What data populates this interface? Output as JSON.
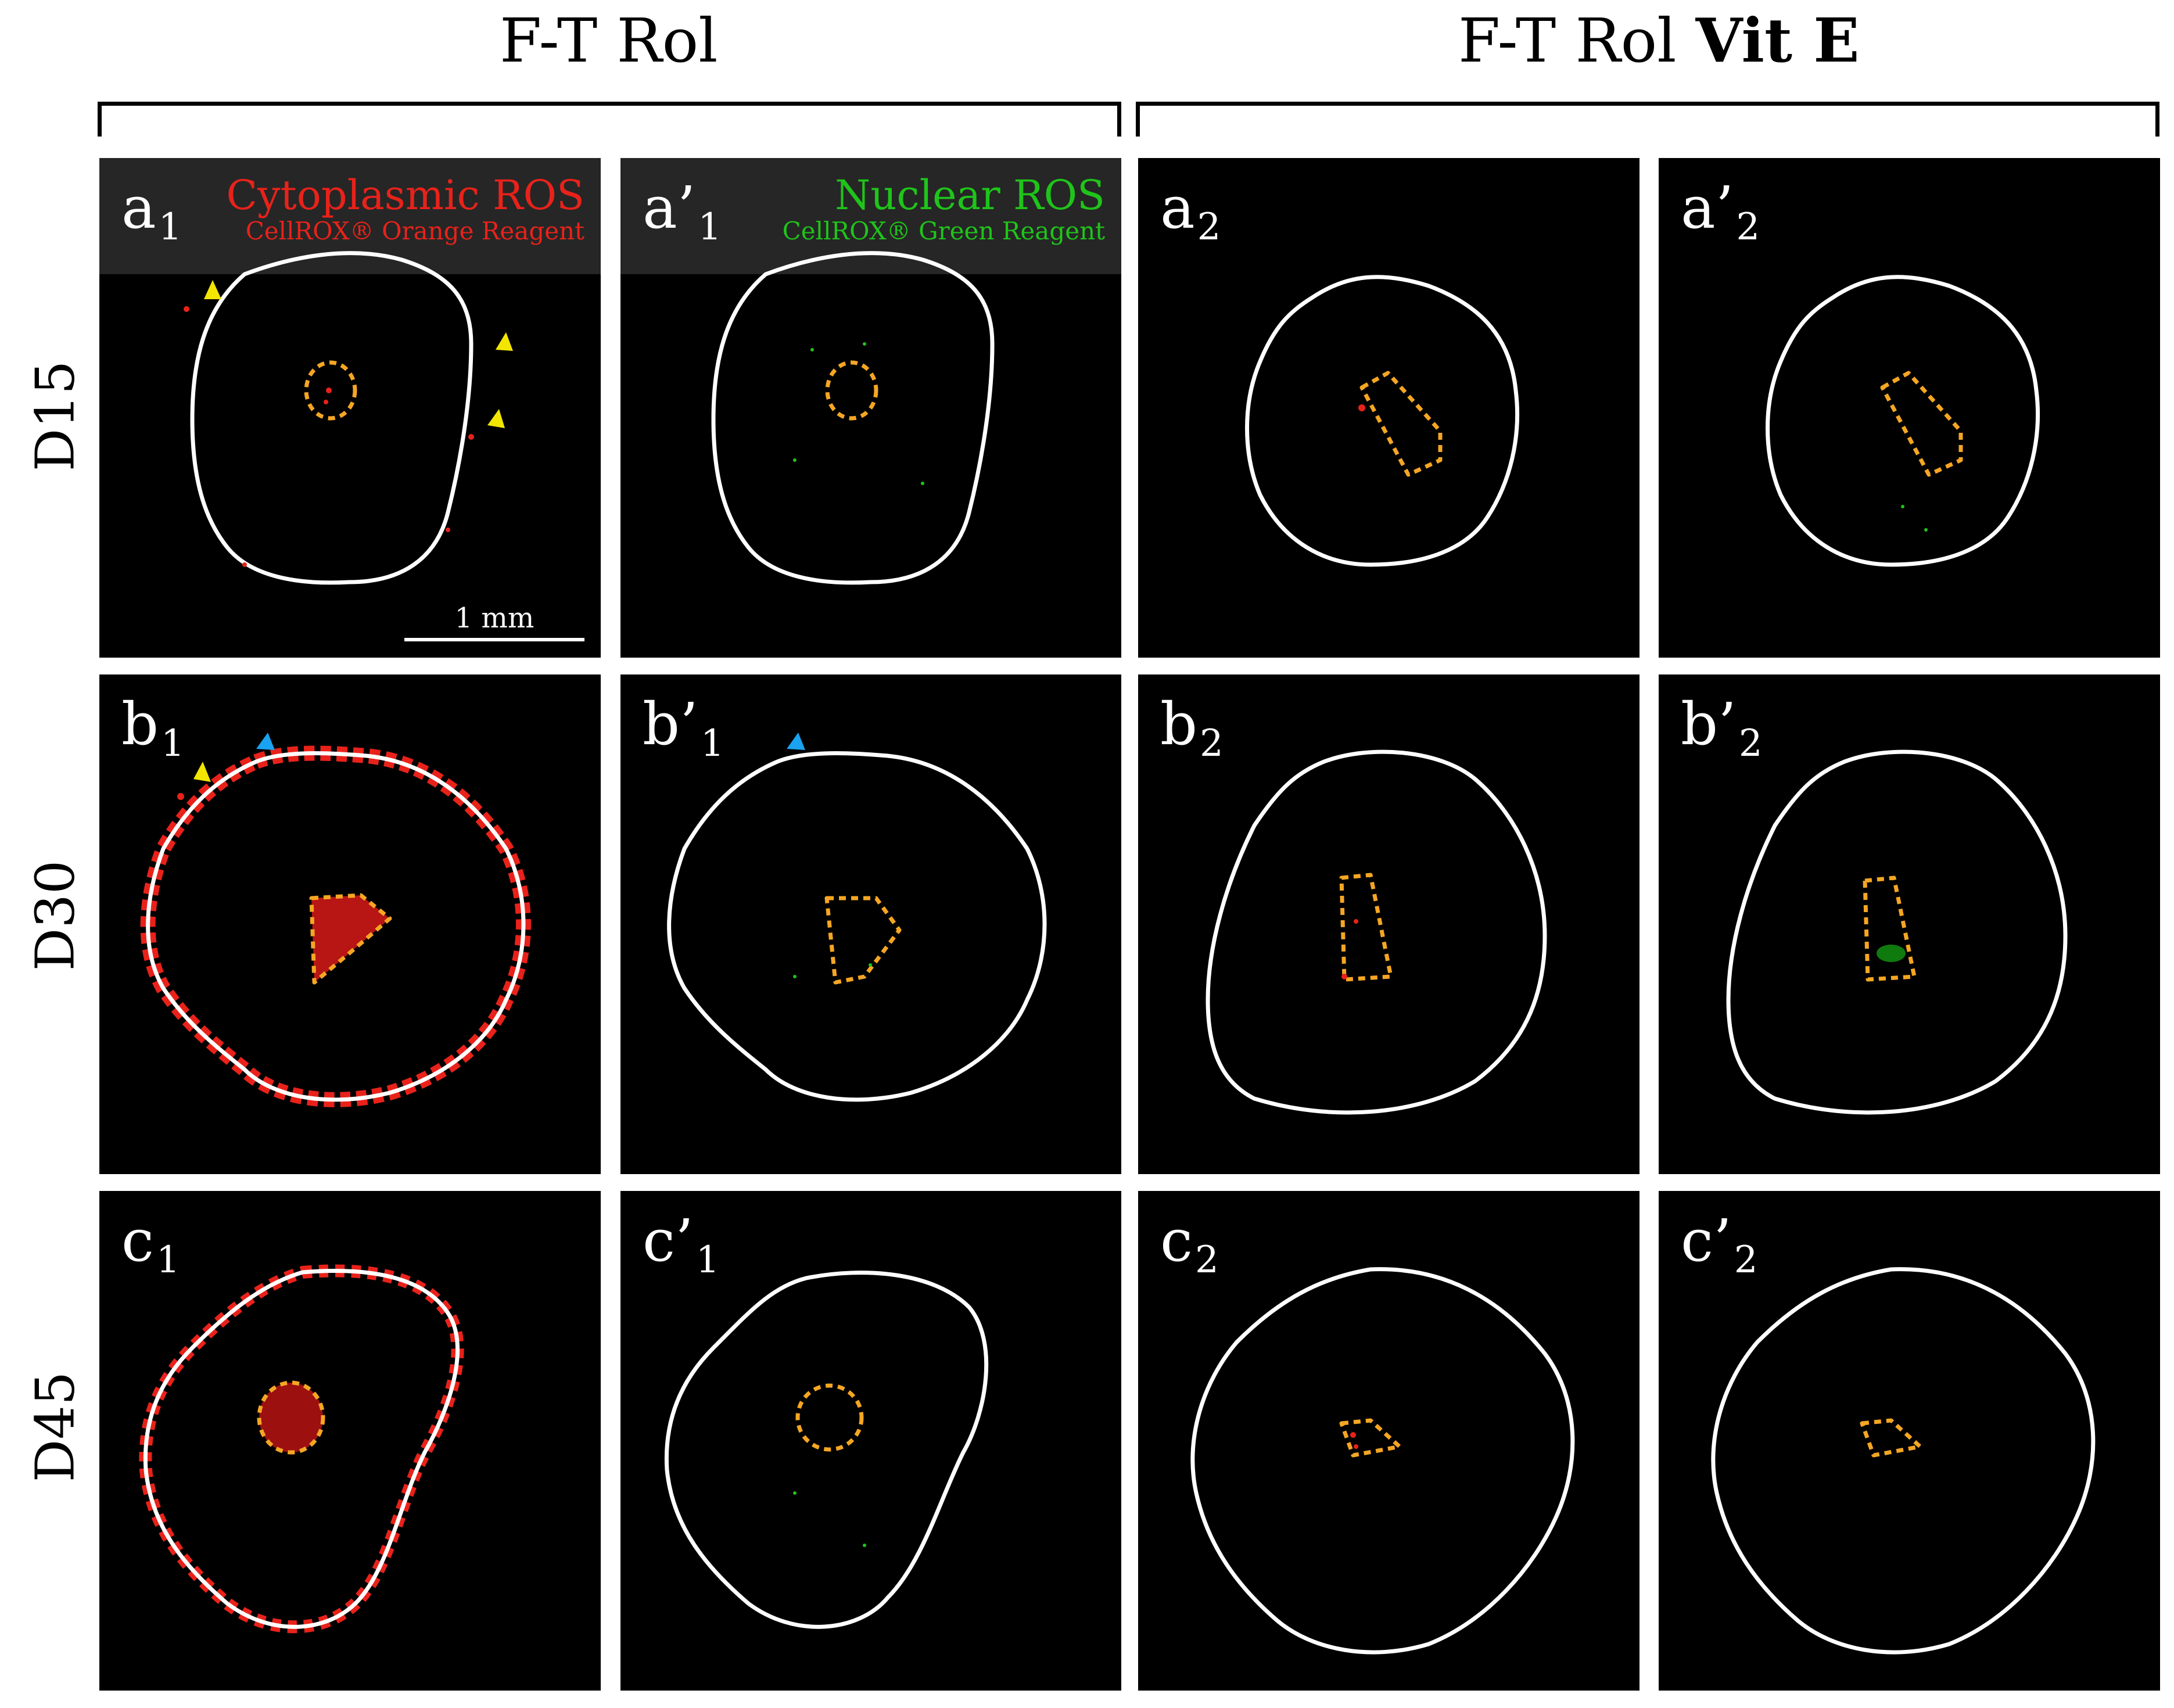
{
  "groups": {
    "left": "F-T Rol",
    "right_plain": "F-T Rol ",
    "right_bold": "Vit E"
  },
  "rows": [
    "D15",
    "D30",
    "D45"
  ],
  "panels": {
    "a1": {
      "letter": "a",
      "sub": "1"
    },
    "a1p": {
      "letter": "a’",
      "sub": "1"
    },
    "a2": {
      "letter": "a",
      "sub": "2"
    },
    "a2p": {
      "letter": "a’",
      "sub": "2"
    },
    "b1": {
      "letter": "b",
      "sub": "1"
    },
    "b1p": {
      "letter": "b’",
      "sub": "1"
    },
    "b2": {
      "letter": "b",
      "sub": "2"
    },
    "b2p": {
      "letter": "b’",
      "sub": "2"
    },
    "c1": {
      "letter": "c",
      "sub": "1"
    },
    "c1p": {
      "letter": "c’",
      "sub": "1"
    },
    "c2": {
      "letter": "c",
      "sub": "2"
    },
    "c2p": {
      "letter": "c’",
      "sub": "2"
    }
  },
  "stains": {
    "cytoplasmic": {
      "title": "Cytoplasmic ROS",
      "reagent": "CellROX® Orange Reagent",
      "color": "#e8221a"
    },
    "nuclear": {
      "title": "Nuclear ROS",
      "reagent": "CellROX® Green Reagent",
      "color": "#1fc41a"
    }
  },
  "scale_bar": "1 mm",
  "colors": {
    "background": "#000000",
    "outline": "#ffffff",
    "nucleus_outline": "#f5a623",
    "arrow_yellow": "#f2e600",
    "arrow_blue": "#1aa3f0"
  }
}
